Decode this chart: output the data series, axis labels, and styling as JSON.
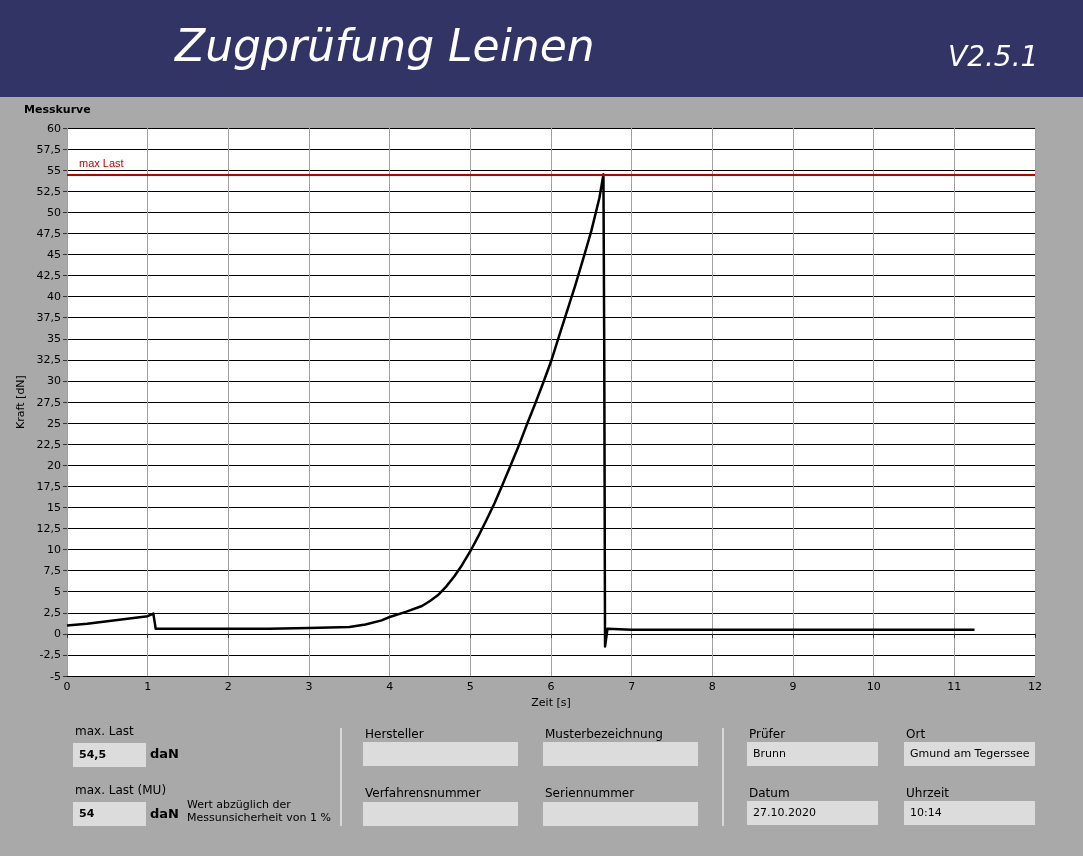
{
  "chart_data": {
    "type": "line",
    "title": "Zugprüfung Leinen",
    "subtitle": "Messkurve",
    "xlabel": "Zeit [s]",
    "ylabel": "Kraft [dN]",
    "x": [
      0,
      0.25,
      0.5,
      0.75,
      1.0,
      1.07,
      1.1,
      1.5,
      2.0,
      2.5,
      3.0,
      3.5,
      3.7,
      3.9,
      4.0,
      4.2,
      4.4,
      4.5,
      4.6,
      4.7,
      4.8,
      4.9,
      5.0,
      5.1,
      5.2,
      5.3,
      5.4,
      5.5,
      5.6,
      5.7,
      5.8,
      5.9,
      6.0,
      6.1,
      6.2,
      6.3,
      6.4,
      6.5,
      6.6,
      6.65,
      6.66,
      6.67,
      6.7,
      7.0,
      8.0,
      9.0,
      10.0,
      11.0,
      11.25
    ],
    "series": [
      {
        "color": "#000000",
        "values": [
          1.0,
          1.2,
          1.5,
          1.8,
          2.1,
          2.4,
          0.6,
          0.6,
          0.6,
          0.6,
          0.7,
          0.8,
          1.1,
          1.6,
          2.0,
          2.6,
          3.3,
          3.9,
          4.6,
          5.6,
          6.8,
          8.2,
          9.8,
          11.6,
          13.5,
          15.5,
          17.7,
          20.0,
          22.3,
          24.8,
          27.2,
          29.7,
          32.3,
          35.3,
          38.3,
          41.3,
          44.5,
          47.8,
          51.7,
          54.5,
          34.0,
          -1.5,
          0.6,
          0.5,
          0.5,
          0.5,
          0.5,
          0.5,
          0.5
        ]
      }
    ],
    "xlim": [
      0,
      12
    ],
    "xticks": [
      0,
      1,
      2,
      3,
      4,
      5,
      6,
      7,
      8,
      9,
      10,
      11,
      12
    ],
    "ylim": [
      -5,
      60
    ],
    "yticks": [
      -5,
      {
        "value": -2.5,
        "label": "-2,5"
      },
      0,
      {
        "value": 2.5,
        "label": "2,5"
      },
      5,
      {
        "value": 7.5,
        "label": "7,5"
      },
      10,
      {
        "value": 12.5,
        "label": "12,5"
      },
      15,
      {
        "value": 17.5,
        "label": "17,5"
      },
      20,
      {
        "value": 22.5,
        "label": "22,5"
      },
      25,
      {
        "value": 27.5,
        "label": "27,5"
      },
      30,
      {
        "value": 32.5,
        "label": "32,5"
      },
      35,
      {
        "value": 37.5,
        "label": "37,5"
      },
      40,
      {
        "value": 42.5,
        "label": "42,5"
      },
      45,
      {
        "value": 47.5,
        "label": "47,5"
      },
      50,
      {
        "value": 52.5,
        "label": "52,5"
      },
      55,
      {
        "value": 57.5,
        "label": "57,5"
      },
      60
    ],
    "grid": true,
    "marker": "none",
    "line_style": "solid",
    "ref_lines": [
      {
        "axis": "y",
        "value": 54.5,
        "label": "max Last",
        "color": "#c00000"
      }
    ],
    "annotations": [
      "V2.5.1",
      "max. Last",
      "54,5",
      "daN",
      "max. Last (MU)",
      "54",
      "daN",
      "Wert abzüglich der Messunsicherheit von 1 %",
      "Hersteller",
      "Musterbezeichnung",
      "Verfahrensnummer",
      "Seriennummer",
      "Prüfer",
      "Brunn",
      "Ort",
      "Gmund am Tegerssee",
      "Datum",
      "27.10.2020",
      "Uhrzeit",
      "10:14"
    ]
  }
}
